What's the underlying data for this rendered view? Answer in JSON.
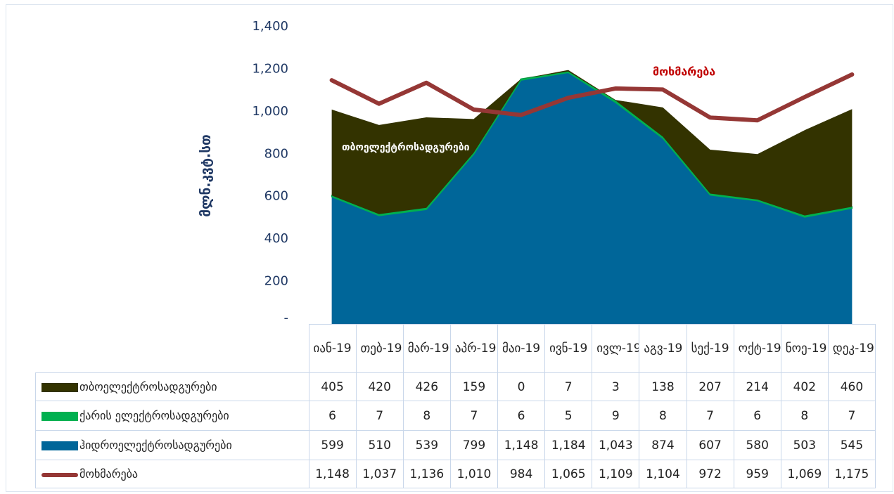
{
  "chart_data": {
    "type": "area_line",
    "y_label": "მლნ.კვტ.სთ",
    "categories": [
      "იან-19",
      "თებ-19",
      "მარ-19",
      "აპრ-19",
      "მაი-19",
      "ივნ-19",
      "ივლ-19",
      "აგვ-19",
      "სექ-19",
      "ოქტ-19",
      "ნოე-19",
      "დეკ-19"
    ],
    "series": [
      {
        "name": "თბოელექტროსადგურები",
        "color": "#333300",
        "type": "area",
        "values": [
          405,
          420,
          426,
          159,
          0,
          7,
          3,
          138,
          207,
          214,
          402,
          460
        ]
      },
      {
        "name": "ქარის ელექტროსადგურები",
        "color": "#00b050",
        "type": "area",
        "values": [
          6,
          7,
          8,
          7,
          6,
          5,
          9,
          8,
          7,
          6,
          8,
          7
        ]
      },
      {
        "name": "ჰიდროელექტროსადგურები",
        "color": "#006699",
        "type": "area",
        "values": [
          599,
          510,
          539,
          799,
          1148,
          1184,
          1043,
          874,
          607,
          580,
          503,
          545
        ],
        "value_labels": [
          "599",
          "510",
          "539",
          "799",
          "1,148",
          "1,184",
          "1,043",
          "874",
          "607",
          "580",
          "503",
          "545"
        ]
      },
      {
        "name": "მოხმარება",
        "color": "#953735",
        "type": "line",
        "values": [
          1148,
          1037,
          1136,
          1010,
          984,
          1065,
          1109,
          1104,
          972,
          959,
          1069,
          1175
        ],
        "value_labels": [
          "1,148",
          "1,037",
          "1,136",
          "1,010",
          "984",
          "1,065",
          "1,109",
          "1,104",
          "972",
          "959",
          "1,069",
          "1,175"
        ]
      }
    ],
    "ylim": [
      0,
      1400
    ],
    "yticks": [
      {
        "value": 0,
        "label": "-"
      },
      200,
      400,
      600,
      800,
      {
        "value": 1000,
        "label": "1,000"
      },
      {
        "value": 1200,
        "label": "1,200"
      },
      {
        "value": 1400,
        "label": "1,400"
      }
    ],
    "grid": false
  }
}
